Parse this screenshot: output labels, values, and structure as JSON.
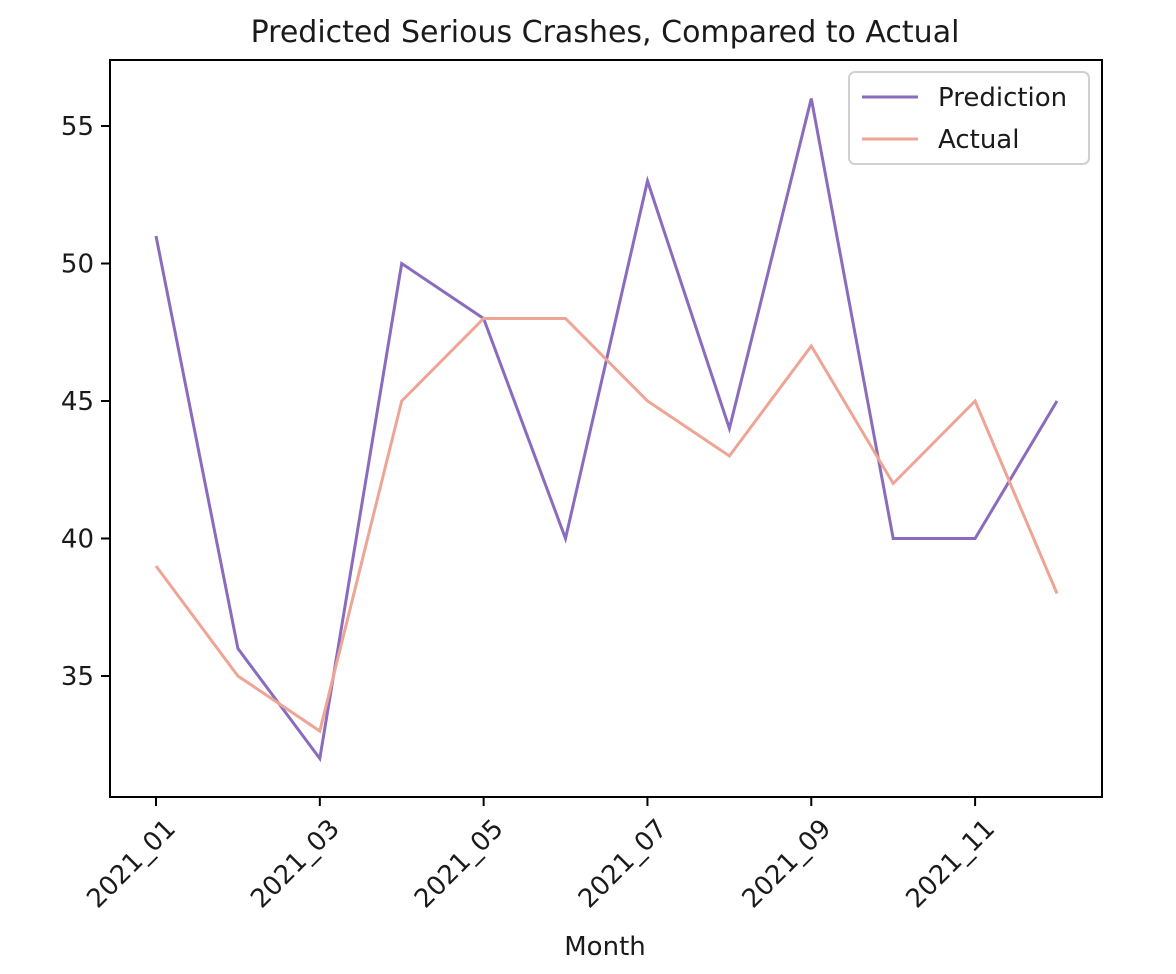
{
  "chart_data": {
    "type": "line",
    "title": "Predicted Serious Crashes, Compared to Actual",
    "xlabel": "Month",
    "ylabel": "",
    "x": [
      "2021_01",
      "2021_02",
      "2021_03",
      "2021_04",
      "2021_05",
      "2021_06",
      "2021_07",
      "2021_08",
      "2021_09",
      "2021_10",
      "2021_11",
      "2021_12"
    ],
    "x_tick_labels": [
      "2021_01",
      "2021_03",
      "2021_05",
      "2021_07",
      "2021_09",
      "2021_11"
    ],
    "y_ticks": [
      35,
      40,
      45,
      50,
      55
    ],
    "ylim": [
      30.6,
      57.4
    ],
    "grid": false,
    "legend_placement": "top-right",
    "series": [
      {
        "name": "Prediction",
        "color": "#8a6bbd",
        "values": [
          51,
          36,
          32,
          50,
          48,
          40,
          53,
          44,
          56,
          40,
          40,
          45
        ]
      },
      {
        "name": "Actual",
        "color": "#eea596",
        "values": [
          39,
          35,
          33,
          45,
          48,
          48,
          45,
          43,
          47,
          42,
          45,
          38
        ]
      }
    ]
  }
}
